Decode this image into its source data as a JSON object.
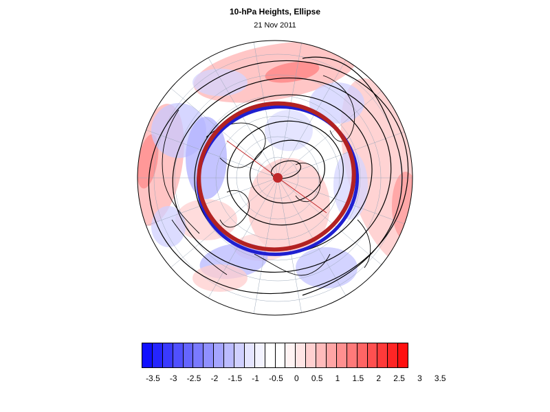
{
  "title": "10-hPa Heights, Ellipse",
  "subtitle": "21 Nov 2011",
  "colors": {
    "anomaly_negative_max": "#0f0fff",
    "anomaly_positive_max": "#ff1010",
    "ellipse_red": "#b22222",
    "ellipse_blue": "#1f1fd0",
    "contour": "#000000",
    "center_marker": "#c0282a"
  },
  "colorbar": {
    "labels": [
      "-3.5",
      "-3",
      "-2.5",
      "-2",
      "-1.5",
      "-1",
      "-0.5",
      "0",
      "0.5",
      "1",
      "1.5",
      "2",
      "2.5",
      "3",
      "3.5"
    ],
    "colors": [
      "#1010ff",
      "#2525ff",
      "#3a3aff",
      "#5050ff",
      "#6565ff",
      "#7a7aff",
      "#9090ff",
      "#a5a5ff",
      "#bbbbff",
      "#d0d0ff",
      "#e5e5ff",
      "#f3f3ff",
      "#ffffff",
      "#ffffff",
      "#fff3f3",
      "#ffe5e5",
      "#ffd0d0",
      "#ffbbbb",
      "#ffa5a5",
      "#ff9090",
      "#ff7a7a",
      "#ff6565",
      "#ff5050",
      "#ff3a3a",
      "#ff2525",
      "#ff1010"
    ]
  }
}
